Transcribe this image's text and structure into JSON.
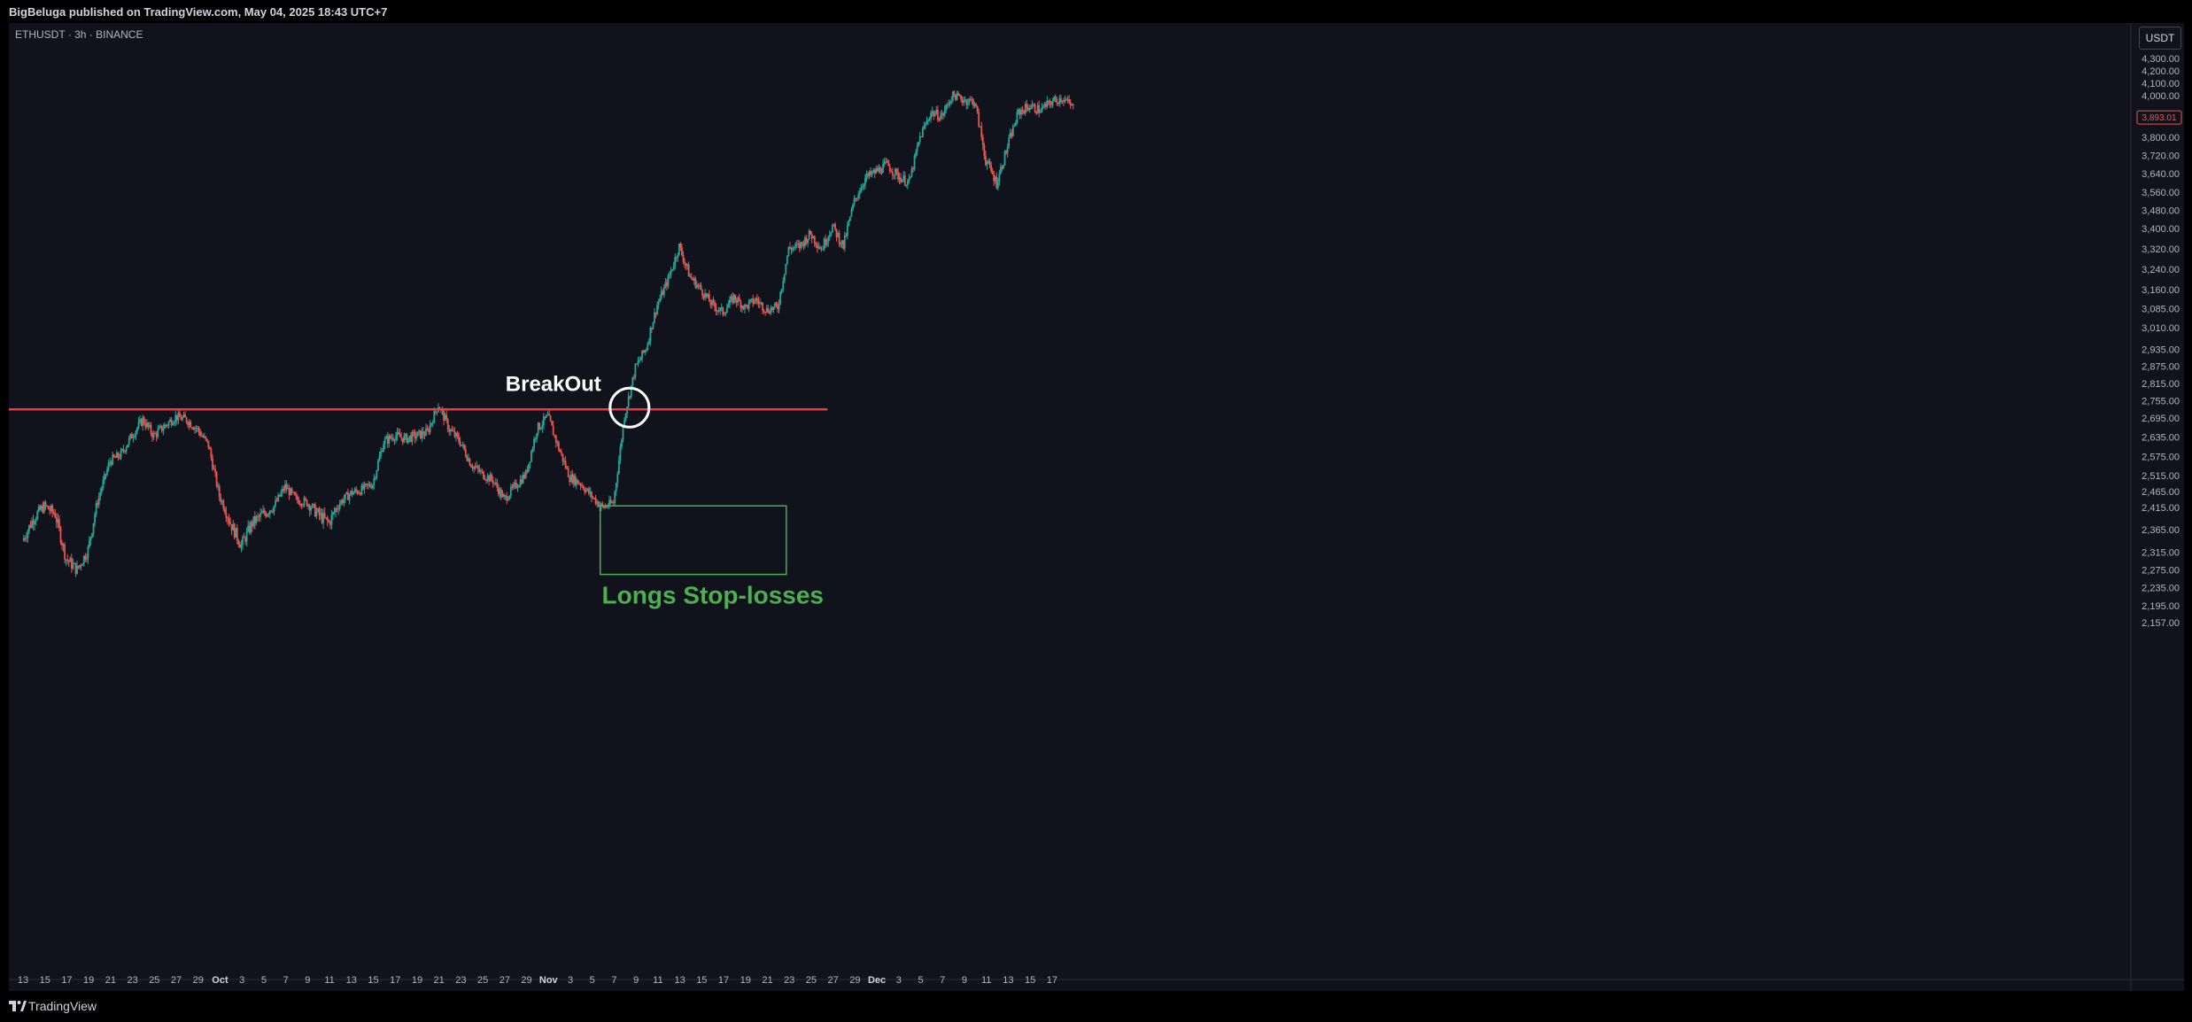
{
  "header": {
    "published_by": "BigBeluga published on TradingView.com, May 04, 2025 18:43 UTC+7"
  },
  "chart_header": {
    "symbol": "ETHUSDT · 3h · BINANCE",
    "currency_button": "USDT"
  },
  "footer": {
    "brand": "TradingView",
    "logo_icon": "tradingview-logo-icon"
  },
  "colors": {
    "background": "#10131c",
    "up_candle": "#26a69a",
    "down_candle": "#ef5350",
    "breakout_line": "#f23645",
    "stoploss_zone": "#4caf50",
    "annotation_text": "#ffffff"
  },
  "chart_data": {
    "type": "candlestick",
    "symbol": "ETHUSDT",
    "interval": "3h",
    "exchange": "BINANCE",
    "last_price": "3,893.01",
    "price_axis": {
      "side": "right",
      "ticks": [
        "4,300.00",
        "4,200.00",
        "4,100.00",
        "4,000.00",
        "3,800.00",
        "3,720.00",
        "3,640.00",
        "3,560.00",
        "3,480.00",
        "3,400.00",
        "3,320.00",
        "3,240.00",
        "3,160.00",
        "3,085.00",
        "3,010.00",
        "2,935.00",
        "2,875.00",
        "2,815.00",
        "2,755.00",
        "2,695.00",
        "2,635.00",
        "2,575.00",
        "2,515.00",
        "2,465.00",
        "2,415.00",
        "2,365.00",
        "2,315.00",
        "2,275.00",
        "2,235.00",
        "2,195.00",
        "2,157.00"
      ]
    },
    "time_axis": {
      "ticks": [
        "13",
        "15",
        "17",
        "19",
        "21",
        "23",
        "25",
        "27",
        "29",
        "Oct",
        "3",
        "5",
        "7",
        "9",
        "11",
        "13",
        "15",
        "17",
        "19",
        "21",
        "23",
        "25",
        "27",
        "29",
        "Nov",
        "3",
        "5",
        "7",
        "9",
        "11",
        "13",
        "15",
        "17",
        "19",
        "21",
        "23",
        "25",
        "27",
        "29",
        "Dec",
        "3",
        "5",
        "7",
        "9",
        "11",
        "13",
        "15",
        "17"
      ],
      "major": [
        "Oct",
        "Nov",
        "Dec"
      ]
    },
    "price_path": [
      [
        "13",
        2340
      ],
      [
        "14",
        2390
      ],
      [
        "15",
        2420
      ],
      [
        "16",
        2400
      ],
      [
        "17",
        2300
      ],
      [
        "18",
        2275
      ],
      [
        "19",
        2320
      ],
      [
        "20",
        2450
      ],
      [
        "21",
        2560
      ],
      [
        "22",
        2580
      ],
      [
        "23",
        2640
      ],
      [
        "24",
        2690
      ],
      [
        "25",
        2640
      ],
      [
        "26",
        2670
      ],
      [
        "27",
        2700
      ],
      [
        "28",
        2690
      ],
      [
        "29",
        2660
      ],
      [
        "30",
        2610
      ],
      [
        "Oct",
        2450
      ],
      [
        "2",
        2380
      ],
      [
        "3",
        2330
      ],
      [
        "4",
        2380
      ],
      [
        "5",
        2400
      ],
      [
        "6",
        2420
      ],
      [
        "7",
        2480
      ],
      [
        "8",
        2440
      ],
      [
        "9",
        2430
      ],
      [
        "10",
        2400
      ],
      [
        "11",
        2380
      ],
      [
        "12",
        2430
      ],
      [
        "13",
        2460
      ],
      [
        "14",
        2470
      ],
      [
        "15",
        2490
      ],
      [
        "16",
        2620
      ],
      [
        "17",
        2640
      ],
      [
        "18",
        2630
      ],
      [
        "19",
        2640
      ],
      [
        "20",
        2650
      ],
      [
        "21",
        2740
      ],
      [
        "22",
        2660
      ],
      [
        "23",
        2620
      ],
      [
        "24",
        2550
      ],
      [
        "25",
        2520
      ],
      [
        "26",
        2500
      ],
      [
        "27",
        2440
      ],
      [
        "28",
        2480
      ],
      [
        "29",
        2520
      ],
      [
        "30",
        2660
      ],
      [
        "31",
        2700
      ],
      [
        "Nov",
        2600
      ],
      [
        "2",
        2510
      ],
      [
        "3",
        2490
      ],
      [
        "4",
        2450
      ],
      [
        "5",
        2415
      ],
      [
        "6",
        2430
      ],
      [
        "7",
        2700
      ],
      [
        "8",
        2870
      ],
      [
        "9",
        2940
      ],
      [
        "10",
        3100
      ],
      [
        "11",
        3200
      ],
      [
        "12",
        3330
      ],
      [
        "13",
        3210
      ],
      [
        "14",
        3160
      ],
      [
        "15",
        3100
      ],
      [
        "16",
        3070
      ],
      [
        "17",
        3130
      ],
      [
        "18",
        3090
      ],
      [
        "19",
        3120
      ],
      [
        "20",
        3080
      ],
      [
        "21",
        3090
      ],
      [
        "22",
        3320
      ],
      [
        "23",
        3330
      ],
      [
        "24",
        3380
      ],
      [
        "25",
        3320
      ],
      [
        "26",
        3410
      ],
      [
        "27",
        3330
      ],
      [
        "28",
        3520
      ],
      [
        "29",
        3620
      ],
      [
        "30",
        3650
      ],
      [
        "Dec",
        3680
      ],
      [
        "2",
        3630
      ],
      [
        "3",
        3600
      ],
      [
        "4",
        3800
      ],
      [
        "5",
        3920
      ],
      [
        "6",
        3900
      ],
      [
        "7",
        4010
      ],
      [
        "8",
        3980
      ],
      [
        "9",
        3970
      ],
      [
        "10",
        3700
      ],
      [
        "11",
        3600
      ],
      [
        "12",
        3760
      ],
      [
        "13",
        3920
      ],
      [
        "14",
        3950
      ],
      [
        "15",
        3930
      ],
      [
        "16",
        3970
      ],
      [
        "17",
        3990
      ],
      [
        "18",
        3940
      ]
    ],
    "annotations": [
      {
        "type": "horizontal-line",
        "price": 2725,
        "from": "12",
        "to": "25",
        "color": "#f23645"
      },
      {
        "type": "circle",
        "at": "7",
        "price": 2725,
        "label": "BreakOut"
      },
      {
        "type": "rectangle",
        "from": "4",
        "to": "21",
        "price_top": 2420,
        "price_bottom": 2265,
        "label": "Longs Stop-losses",
        "color": "#4caf50"
      }
    ]
  }
}
